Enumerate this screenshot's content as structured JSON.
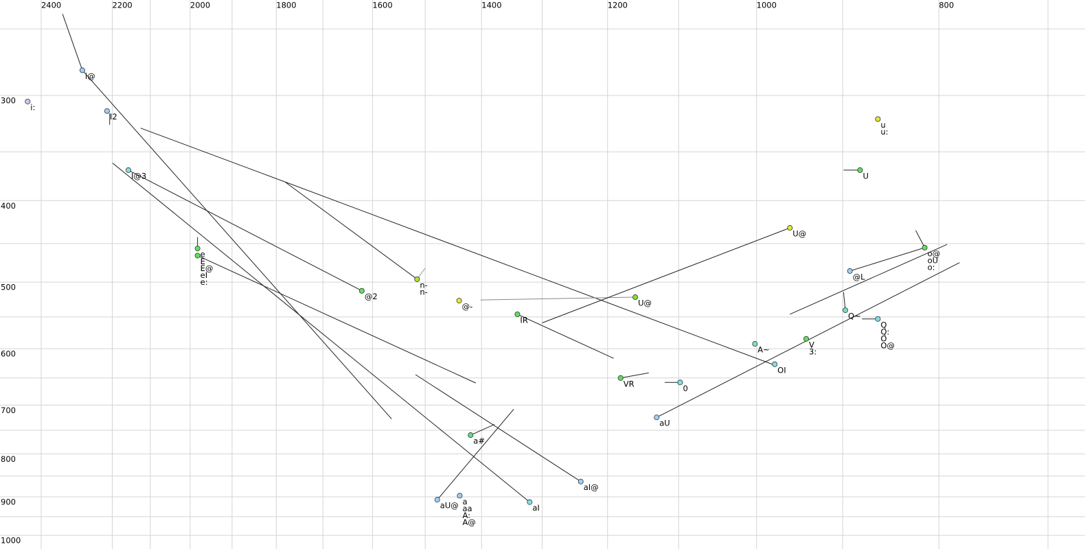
{
  "chart_data": {
    "type": "scatter",
    "xlog": true,
    "ylog": true,
    "xlim": [
      2524,
      669
    ],
    "ylim": [
      231,
      1038
    ],
    "xticks": [
      2400,
      2200,
      2000,
      1800,
      1600,
      1400,
      1200,
      1000,
      800
    ],
    "xgrid": [
      2400,
      2200,
      2100,
      2000,
      1900,
      1800,
      1700,
      1600,
      1500,
      1400,
      1300,
      1200,
      1100,
      1000,
      900,
      800,
      700
    ],
    "yticks": [
      300,
      400,
      500,
      600,
      700,
      800,
      900,
      1000
    ],
    "ygrid": [
      250,
      300,
      350,
      400,
      450,
      500,
      550,
      600,
      650,
      700,
      750,
      800,
      850,
      900,
      950,
      1000
    ],
    "grid_color": "#d4d4d4",
    "line_color": "#222222",
    "points": [
      {
        "x": 2440,
        "y": 305,
        "color": "#c8c8f4",
        "labels": [
          "i:"
        ]
      },
      {
        "x": 2282,
        "y": 280,
        "color": "#9ccfff",
        "labels": [
          "i@"
        ]
      },
      {
        "x": 2214,
        "y": 313,
        "color": "#9ccfff",
        "labels": [
          "I2"
        ]
      },
      {
        "x": 2157,
        "y": 368,
        "color": "#7fe0e8",
        "labels": [
          "I@3"
        ]
      },
      {
        "x": 1982,
        "y": 456,
        "color": "#5fe05f",
        "labels": [
          "e"
        ]
      },
      {
        "x": 1982,
        "y": 465,
        "color": "#5fe05f",
        "labels": [
          "E",
          "E@",
          "eI",
          "e:"
        ]
      },
      {
        "x": 1621,
        "y": 512,
        "color": "#5fe05f",
        "labels": [
          "@2"
        ]
      },
      {
        "x": 1515,
        "y": 496,
        "color": "#b4e030",
        "labels": [
          "n-",
          "n-"
        ],
        "label_colors": [
          "#7a7ab8",
          "#000000"
        ]
      },
      {
        "x": 1439,
        "y": 526,
        "color": "#e8e830",
        "labels": [
          "@-"
        ]
      },
      {
        "x": 1340,
        "y": 546,
        "color": "#5fe05f",
        "labels": [
          "IR"
        ]
      },
      {
        "x": 1160,
        "y": 521,
        "color": "#7fe040",
        "labels": [
          "U@"
        ],
        "label_colors": [
          "#888888"
        ]
      },
      {
        "x": 960,
        "y": 431,
        "color": "#e0e830",
        "labels": [
          "U@"
        ]
      },
      {
        "x": 862,
        "y": 320,
        "color": "#e0e830",
        "labels": [
          "u",
          "u:"
        ]
      },
      {
        "x": 881,
        "y": 368,
        "color": "#5fe05f",
        "labels": [
          "U"
        ]
      },
      {
        "x": 814,
        "y": 455,
        "color": "#5fe05f",
        "labels": [
          "o@",
          "oU",
          "o:"
        ]
      },
      {
        "x": 892,
        "y": 485,
        "color": "#9ccfff",
        "labels": [
          "@L"
        ]
      },
      {
        "x": 897,
        "y": 540,
        "color": "#6fe0c8",
        "labels": [
          "Q~"
        ]
      },
      {
        "x": 862,
        "y": 553,
        "color": "#7fe0e8",
        "labels": [
          "Q",
          "Q:",
          "O",
          "O@"
        ]
      },
      {
        "x": 941,
        "y": 584,
        "color": "#5fe05f",
        "labels": [
          "V",
          "3:"
        ]
      },
      {
        "x": 1002,
        "y": 592,
        "color": "#7fe0c8",
        "labels": [
          "A~"
        ]
      },
      {
        "x": 978,
        "y": 626,
        "color": "#7fe0e8",
        "labels": [
          "OI"
        ]
      },
      {
        "x": 1181,
        "y": 650,
        "color": "#5fe05f",
        "labels": [
          "VR"
        ]
      },
      {
        "x": 1098,
        "y": 658,
        "color": "#7fe0e8",
        "labels": [
          "0"
        ]
      },
      {
        "x": 1130,
        "y": 724,
        "color": "#9ccfff",
        "labels": [
          "aU"
        ]
      },
      {
        "x": 1419,
        "y": 760,
        "color": "#5fe080",
        "labels": [
          "a#"
        ]
      },
      {
        "x": 1478,
        "y": 907,
        "color": "#9ccfff",
        "labels": [
          "aU@"
        ]
      },
      {
        "x": 1438,
        "y": 897,
        "color": "#9ccfff",
        "labels": [
          "a",
          "aa",
          "A:",
          "A@"
        ]
      },
      {
        "x": 1320,
        "y": 913,
        "color": "#7fe0e8",
        "labels": [
          "aI"
        ]
      },
      {
        "x": 1240,
        "y": 863,
        "color": "#9ccfff",
        "labels": [
          "aI@"
        ]
      }
    ],
    "segments": [
      {
        "ends": [
          2338,
          240,
          2282,
          280
        ]
      },
      {
        "ends": [
          2282,
          280,
          1563,
          727
        ]
      },
      {
        "ends": [
          2207,
          315,
          2207,
          325
        ]
      },
      {
        "ends": [
          2125,
          328,
          1781,
          380
        ]
      },
      {
        "ends": [
          1781,
          380,
          981,
          626
        ]
      },
      {
        "ends": [
          1781,
          380,
          1515,
          496
        ]
      },
      {
        "ends": [
          1515,
          496,
          1500,
          481
        ],
        "color": "#999999"
      },
      {
        "ends": [
          2199,
          361,
          1320,
          913
        ]
      },
      {
        "ends": [
          2157,
          368,
          1621,
          512
        ]
      },
      {
        "ends": [
          1982,
          442,
          1982,
          456
        ]
      },
      {
        "ends": [
          1982,
          465,
          1410,
          659
        ]
      },
      {
        "ends": [
          1518,
          644,
          1240,
          863
        ]
      },
      {
        "ends": [
          1419,
          760,
          1378,
          738
        ]
      },
      {
        "ends": [
          1478,
          907,
          1346,
          708
        ]
      },
      {
        "ends": [
          1402,
          525,
          1160,
          521
        ],
        "color": "#888888"
      },
      {
        "ends": [
          1340,
          546,
          1191,
          616
        ]
      },
      {
        "ends": [
          1300,
          559,
          960,
          431
        ]
      },
      {
        "ends": [
          1181,
          650,
          1141,
          641
        ]
      },
      {
        "ends": [
          1119,
          658,
          1098,
          658
        ]
      },
      {
        "ends": [
          1130,
          724,
          780,
          474
        ]
      },
      {
        "ends": [
          960,
          546,
          792,
          451
        ]
      },
      {
        "ends": [
          892,
          485,
          814,
          455
        ]
      },
      {
        "ends": [
          823,
          434,
          814,
          455
        ]
      },
      {
        "ends": [
          899,
          368,
          881,
          368
        ]
      },
      {
        "ends": [
          899,
          514,
          897,
          540
        ]
      },
      {
        "ends": [
          879,
          553,
          862,
          553
        ]
      }
    ]
  }
}
